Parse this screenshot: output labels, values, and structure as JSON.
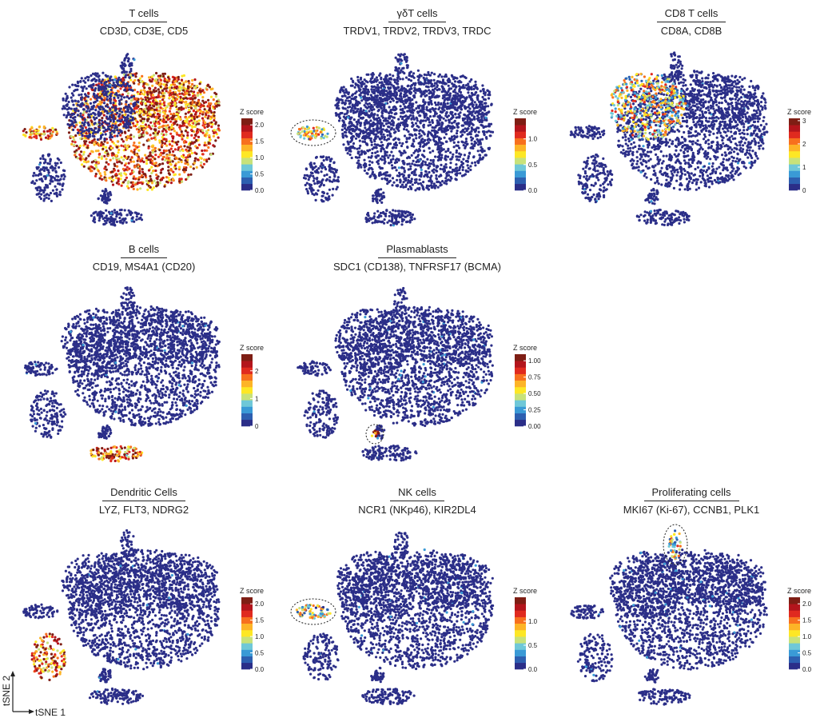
{
  "axis_labels": {
    "x": "tSNE 1",
    "y": "tSNE 2"
  },
  "colorscale": [
    "#2b2e88",
    "#2d5fb0",
    "#3a9ad6",
    "#6fc8d8",
    "#c8e27a",
    "#fde725",
    "#fdb427",
    "#f7701e",
    "#e02a1f",
    "#b3151c",
    "#7e1e14"
  ],
  "chart_data": [
    {
      "type": "scatter",
      "title": "T cells",
      "subtitle": "CD3D, CD3E, CD5",
      "legend_title": "Z score",
      "scale_max": 2.2,
      "ticks": [
        {
          "v": 0,
          "label": "0.0"
        },
        {
          "v": 0.5,
          "label": "0.5"
        },
        {
          "v": 1,
          "label": "1.0"
        },
        {
          "v": 1.5,
          "label": "1.5"
        },
        {
          "v": 2,
          "label": "2.0"
        }
      ],
      "highlight": [
        "main",
        "left"
      ],
      "highlight_level": 0.75,
      "circle": null
    },
    {
      "type": "scatter",
      "title": "γδT cells",
      "subtitle": "TRDV1, TRDV2, TRDV3, TRDC",
      "legend_title": "Z score",
      "scale_max": 1.4,
      "ticks": [
        {
          "v": 0,
          "label": "0.0"
        },
        {
          "v": 0.5,
          "label": "0.5"
        },
        {
          "v": 1,
          "label": "1.0"
        }
      ],
      "highlight": [
        "left"
      ],
      "highlight_level": 0.5,
      "circle": "left"
    },
    {
      "type": "scatter",
      "title": "CD8 T cells",
      "subtitle": "CD8A, CD8B",
      "legend_title": "Z score",
      "scale_max": 3.1,
      "ticks": [
        {
          "v": 0,
          "label": "0"
        },
        {
          "v": 1,
          "label": "1"
        },
        {
          "v": 2,
          "label": "2"
        },
        {
          "v": 3,
          "label": "3"
        }
      ],
      "highlight": [
        "upperleft"
      ],
      "highlight_level": 0.45,
      "circle": null
    },
    {
      "type": "scatter",
      "title": "B cells",
      "subtitle": "CD19, MS4A1 (CD20)",
      "legend_title": "Z score",
      "scale_max": 2.6,
      "ticks": [
        {
          "v": 0,
          "label": "0"
        },
        {
          "v": 1,
          "label": "1"
        },
        {
          "v": 2,
          "label": "2"
        }
      ],
      "highlight": [
        "bottom"
      ],
      "highlight_level": 0.7,
      "circle": null
    },
    {
      "type": "scatter",
      "title": "Plasmablasts",
      "subtitle": "SDC1 (CD138), TNFRSF17 (BCMA)",
      "legend_title": "Z score",
      "scale_max": 1.1,
      "ticks": [
        {
          "v": 0,
          "label": "0.00"
        },
        {
          "v": 0.25,
          "label": "0.25"
        },
        {
          "v": 0.5,
          "label": "0.50"
        },
        {
          "v": 0.75,
          "label": "0.75"
        },
        {
          "v": 1,
          "label": "1.00"
        }
      ],
      "highlight": [
        "plasma"
      ],
      "highlight_level": 0.85,
      "circle": "plasma"
    },
    {
      "type": "scatter",
      "title": "Dendritic Cells",
      "subtitle": "LYZ, FLT3, NDRG2",
      "legend_title": "Z score",
      "scale_max": 2.2,
      "ticks": [
        {
          "v": 0,
          "label": "0.0"
        },
        {
          "v": 0.5,
          "label": "0.5"
        },
        {
          "v": 1,
          "label": "1.0"
        },
        {
          "v": 1.5,
          "label": "1.5"
        },
        {
          "v": 2,
          "label": "2.0"
        }
      ],
      "highlight": [
        "lowerleft"
      ],
      "highlight_level": 0.75,
      "circle": null
    },
    {
      "type": "scatter",
      "title": "NK cells",
      "subtitle": "NCR1 (NKp46), KIR2DL4",
      "legend_title": "Z score",
      "scale_max": 1.5,
      "ticks": [
        {
          "v": 0,
          "label": "0.0"
        },
        {
          "v": 0.5,
          "label": "0.5"
        },
        {
          "v": 1,
          "label": "1.0"
        }
      ],
      "highlight": [
        "left"
      ],
      "highlight_level": 0.4,
      "circle": "left"
    },
    {
      "type": "scatter",
      "title": "Proliferating cells",
      "subtitle": "MKI67 (Ki-67), CCNB1, PLK1",
      "legend_title": "Z score",
      "scale_max": 2.2,
      "ticks": [
        {
          "v": 0,
          "label": "0.0"
        },
        {
          "v": 0.5,
          "label": "0.5"
        },
        {
          "v": 1,
          "label": "1.0"
        },
        {
          "v": 1.5,
          "label": "1.5"
        },
        {
          "v": 2,
          "label": "2.0"
        }
      ],
      "highlight": [
        "top"
      ],
      "highlight_level": 0.45,
      "circle": "top"
    }
  ]
}
